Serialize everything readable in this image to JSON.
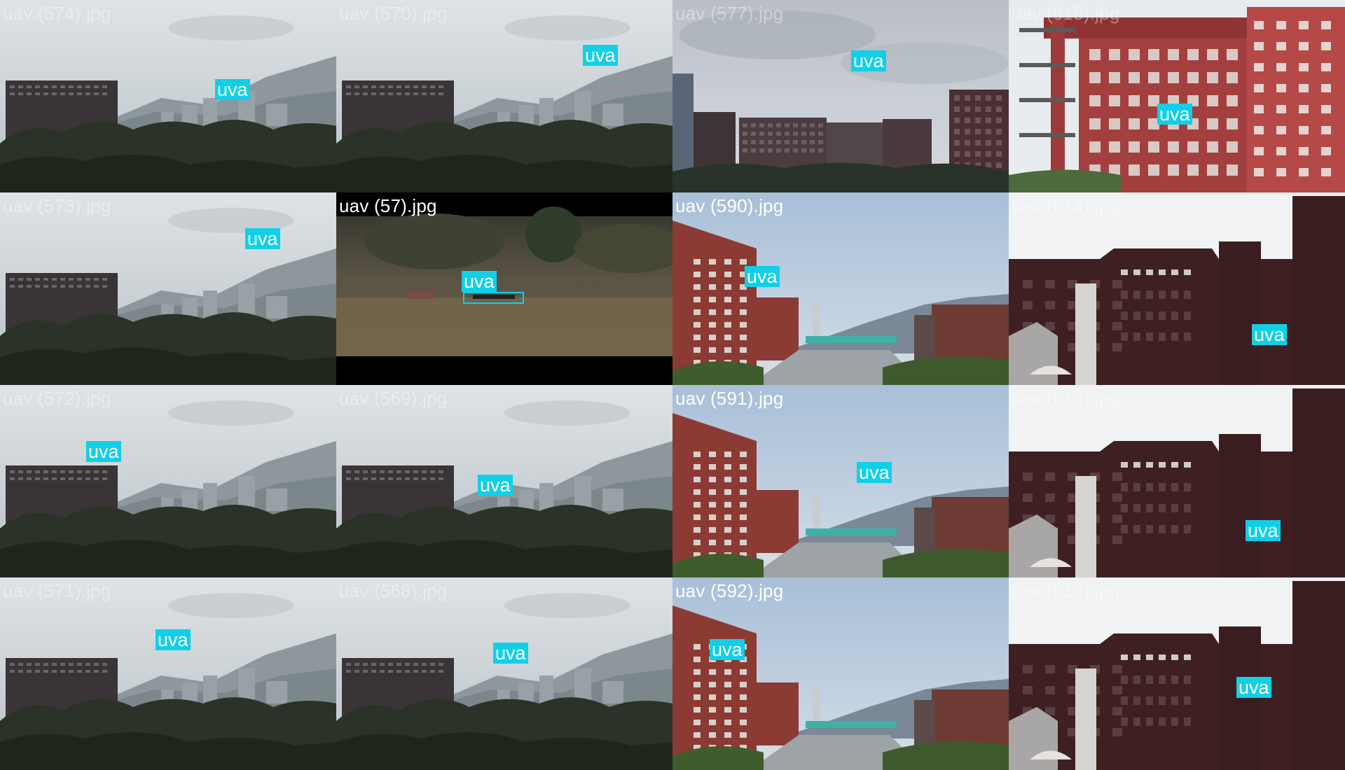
{
  "grid": {
    "tiles": [
      {
        "caption": "uav (574).jpg",
        "caption_style": "faded",
        "scene": "hill",
        "label": "uva"
      },
      {
        "caption": "uav (570).jpg",
        "caption_style": "faded",
        "scene": "hill",
        "label": "uva"
      },
      {
        "caption": "uav (577).jpg",
        "caption_style": "faded",
        "scene": "cloud",
        "label": "uva"
      },
      {
        "caption": "uav (615).jpg",
        "caption_style": "faded",
        "scene": "redwall",
        "label": "uva"
      },
      {
        "caption": "uav (573).jpg",
        "caption_style": "faded",
        "scene": "hill",
        "label": "uva"
      },
      {
        "caption": "uav (57).jpg",
        "caption_style": "solid",
        "scene": "dark",
        "label": "uva"
      },
      {
        "caption": "uav (590).jpg",
        "caption_style": "solid",
        "scene": "campus",
        "label": "uva"
      },
      {
        "caption": "uav (614).jpg",
        "caption_style": "faded",
        "scene": "dorm",
        "label": "uva"
      },
      {
        "caption": "uav (572).jpg",
        "caption_style": "faded",
        "scene": "hill",
        "label": "uva"
      },
      {
        "caption": "uav (569).jpg",
        "caption_style": "faded",
        "scene": "hill",
        "label": "uva"
      },
      {
        "caption": "uav (591).jpg",
        "caption_style": "solid",
        "scene": "campus",
        "label": "uva"
      },
      {
        "caption": "uav (613).jpg",
        "caption_style": "faded",
        "scene": "dorm",
        "label": "uva"
      },
      {
        "caption": "uav (571).jpg",
        "caption_style": "faded",
        "scene": "hill",
        "label": "uva"
      },
      {
        "caption": "uav (568).jpg",
        "caption_style": "faded",
        "scene": "hill",
        "label": "uva"
      },
      {
        "caption": "uav (592).jpg",
        "caption_style": "solid",
        "scene": "campus",
        "label": "uva"
      },
      {
        "caption": "uav (612).jpg",
        "caption_style": "faded",
        "scene": "dorm",
        "label": "uva"
      }
    ]
  },
  "colors": {
    "detection": "#12cfe8",
    "frame": "#7a7a7a",
    "caption_solid": "#ffffff",
    "caption_faded": "rgba(255,255,255,0.38)"
  }
}
